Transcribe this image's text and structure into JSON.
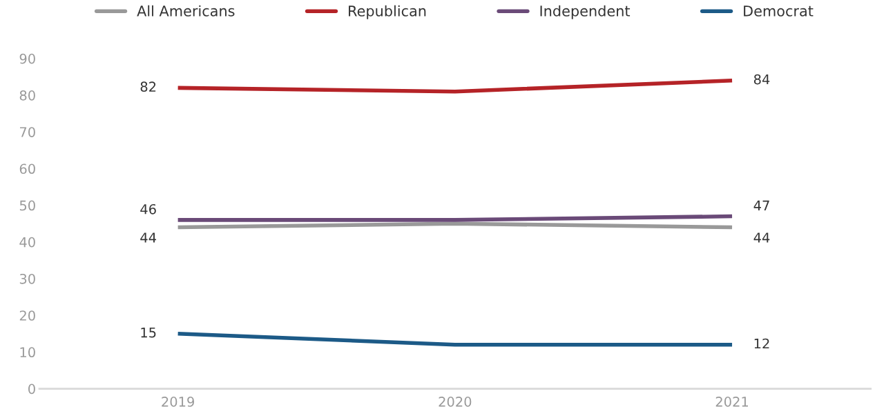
{
  "chart_data": {
    "type": "line",
    "categories": [
      "2019",
      "2020",
      "2021"
    ],
    "series": [
      {
        "name": "All Americans",
        "color": "#999999",
        "values": [
          44,
          45,
          44
        ],
        "value_labels": [
          "44",
          null,
          "44"
        ]
      },
      {
        "name": "Republican",
        "color": "#b52327",
        "values": [
          82,
          81,
          84
        ],
        "value_labels": [
          "82",
          null,
          "84"
        ]
      },
      {
        "name": "Independent",
        "color": "#6a4a78",
        "values": [
          46,
          46,
          47
        ],
        "value_labels": [
          "46",
          null,
          "47"
        ]
      },
      {
        "name": "Democrat",
        "color": "#1c5a87",
        "values": [
          15,
          12,
          12
        ],
        "value_labels": [
          "15",
          null,
          "12"
        ]
      }
    ],
    "ylim": [
      0,
      90
    ],
    "yticks": [
      0,
      10,
      20,
      30,
      40,
      50,
      60,
      70,
      80,
      90
    ],
    "grid": false,
    "legend": "top",
    "marker": "none",
    "line_style": "solid"
  }
}
